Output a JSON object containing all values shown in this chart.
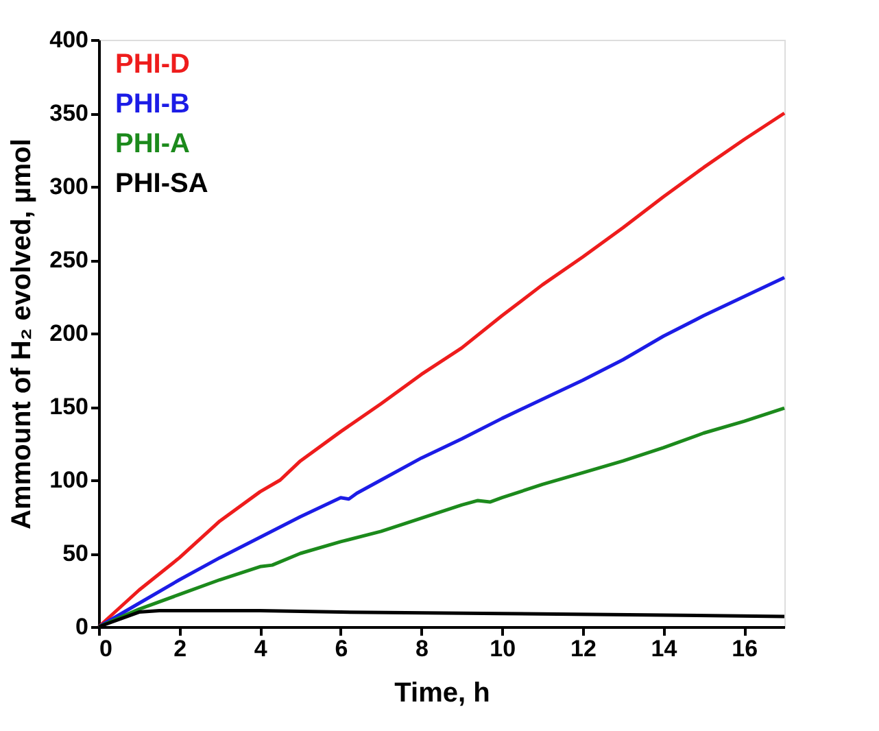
{
  "chart_data": {
    "type": "line",
    "xlabel": "Time, h",
    "ylabel": "Ammount of H₂ evolved, µmol",
    "xlim": [
      0,
      17
    ],
    "ylim": [
      0,
      400
    ],
    "xticks": [
      0,
      2,
      4,
      6,
      8,
      10,
      12,
      14,
      16
    ],
    "yticks": [
      0,
      50,
      100,
      150,
      200,
      250,
      300,
      350,
      400
    ],
    "grid": false,
    "legend": "top left",
    "marker": "none",
    "line_style": "solid",
    "series": [
      {
        "name": "PHI-D",
        "color": "#ee1c1c",
        "x": [
          0,
          1,
          2,
          3,
          4,
          4.5,
          5,
          6,
          7,
          8,
          9,
          10,
          11,
          12,
          13,
          14,
          15,
          16,
          17
        ],
        "values": [
          0,
          25,
          47,
          72,
          92,
          100,
          113,
          133,
          152,
          172,
          190,
          212,
          233,
          252,
          272,
          293,
          313,
          332,
          350
        ]
      },
      {
        "name": "PHI-B",
        "color": "#1c1ce6",
        "x": [
          0,
          1,
          2,
          3,
          4,
          5,
          6,
          6.2,
          6.4,
          7,
          8,
          9,
          10,
          11,
          12,
          13,
          14,
          15,
          16,
          17
        ],
        "values": [
          0,
          16,
          32,
          47,
          61,
          75,
          88,
          87,
          91,
          100,
          115,
          128,
          142,
          155,
          168,
          182,
          198,
          212,
          225,
          238
        ]
      },
      {
        "name": "PHI-A",
        "color": "#1c8a1c",
        "x": [
          0,
          1,
          2,
          3,
          4,
          4.3,
          5,
          6,
          7,
          8,
          9,
          9.4,
          9.7,
          10,
          11,
          12,
          13,
          14,
          15,
          16,
          17
        ],
        "values": [
          0,
          12,
          22,
          32,
          41,
          42,
          50,
          58,
          65,
          74,
          83,
          86,
          85,
          88,
          97,
          105,
          113,
          122,
          132,
          140,
          149
        ]
      },
      {
        "name": "PHI-SA",
        "color": "#000000",
        "x": [
          0,
          1,
          1.5,
          4,
          6,
          10,
          14,
          17
        ],
        "values": [
          0,
          10,
          11,
          11,
          10,
          9,
          8,
          7
        ]
      }
    ]
  }
}
